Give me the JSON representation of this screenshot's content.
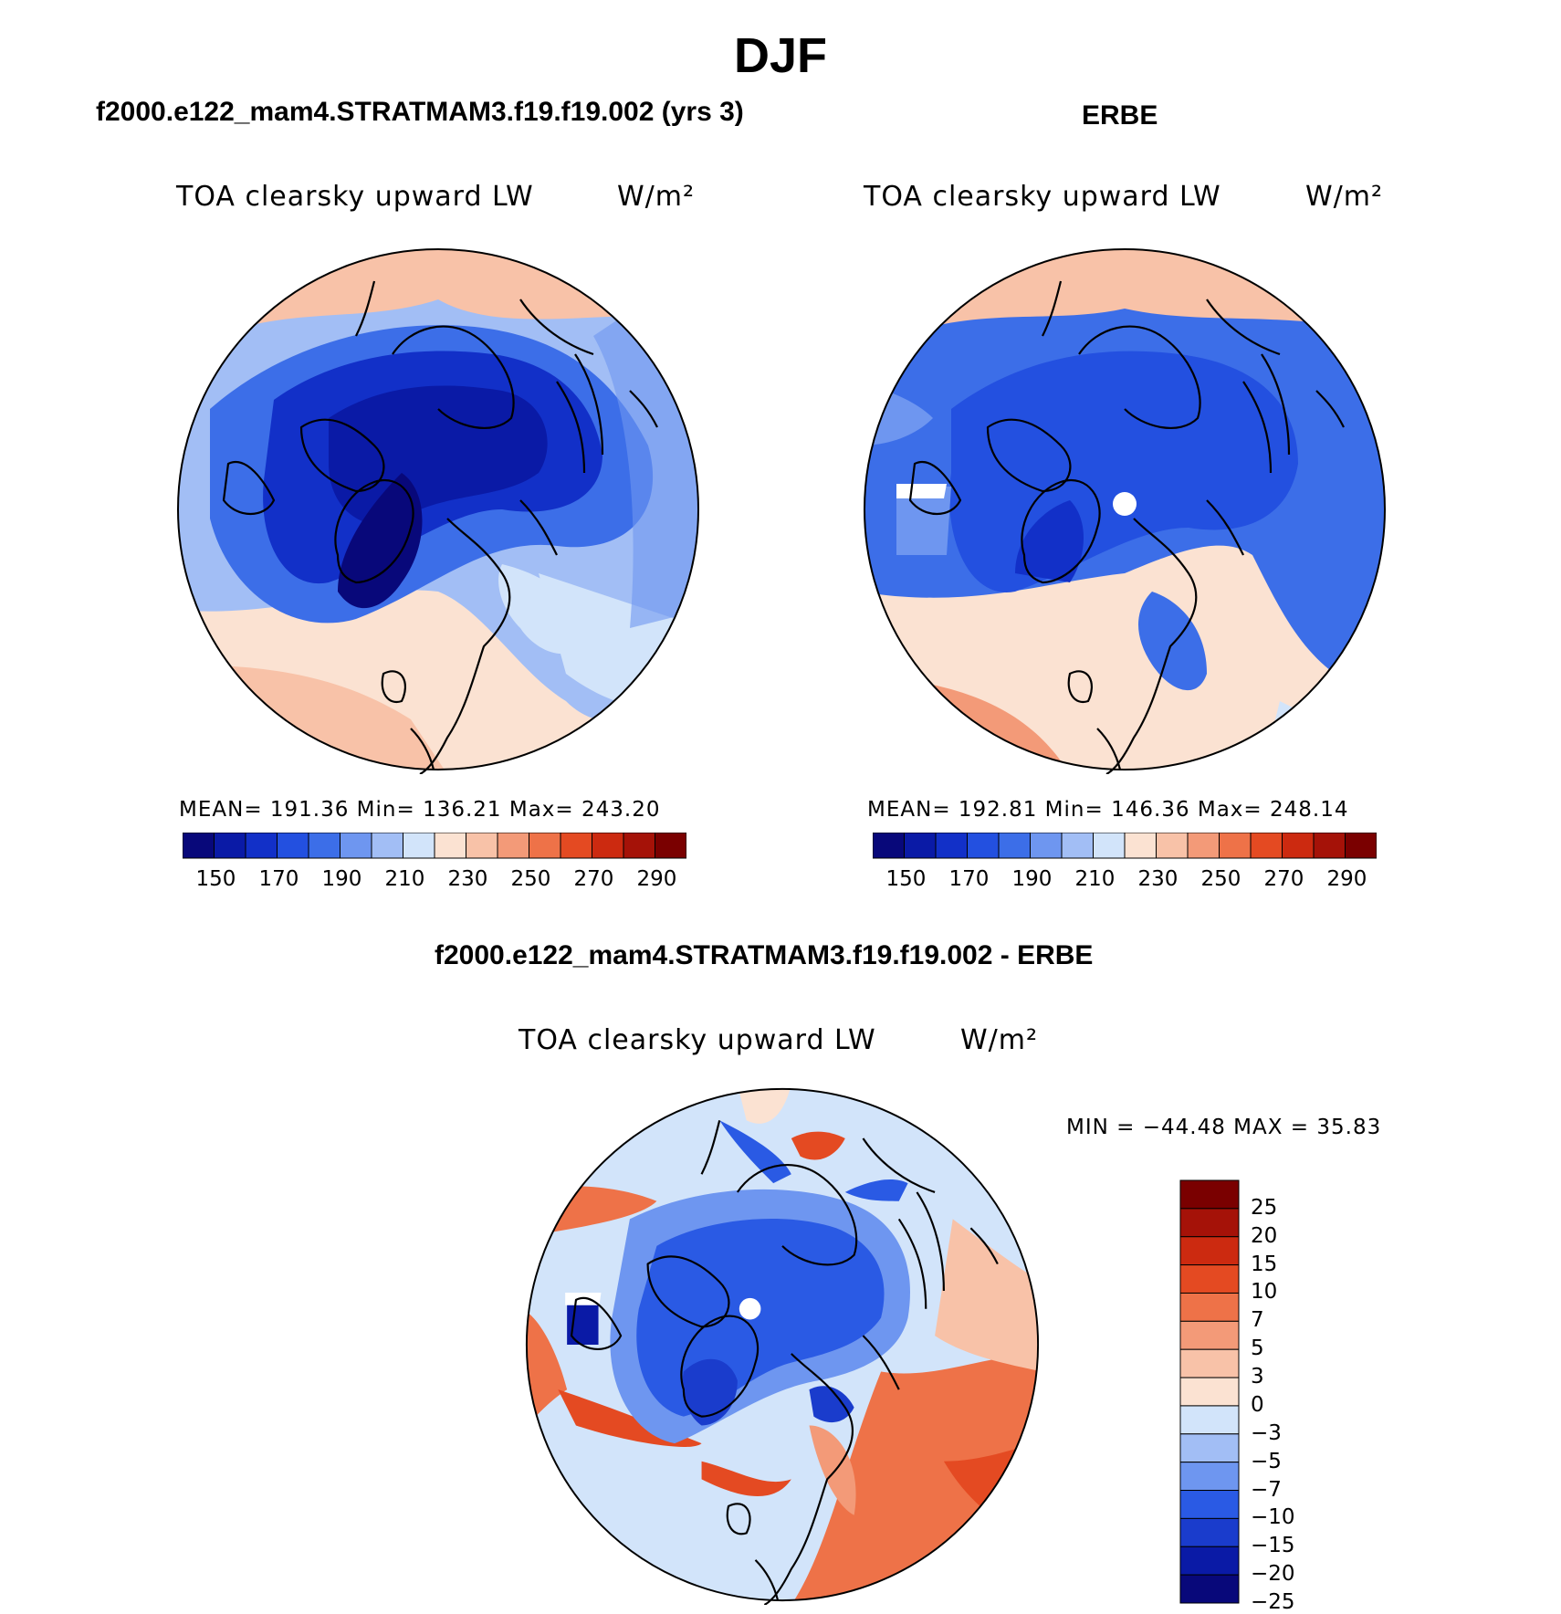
{
  "main_title": "DJF",
  "colors": {
    "model_palette": [
      "#08087a",
      "#0a1aa6",
      "#1230c8",
      "#2350e0",
      "#3c6ee8",
      "#6e96f0",
      "#a2bef5",
      "#d2e4fa",
      "#fbe2d2",
      "#f8c2a8",
      "#f39a78",
      "#ee7248",
      "#e44a22",
      "#cc2a10",
      "#a51208",
      "#7a0000"
    ],
    "diff_palette": [
      "#08087a",
      "#0a1aa6",
      "#1a3ccc",
      "#2a5ae4",
      "#6e96f0",
      "#a2bef5",
      "#d2e4fa",
      "#fbe2d2",
      "#f8c2a8",
      "#f39a78",
      "#ee7248",
      "#e44a22",
      "#cc2a10",
      "#a51208",
      "#7a0000"
    ]
  },
  "panels": [
    {
      "title": "f2000.e122_mam4.STRATMAM3.f19.f19.002 (yrs 3)",
      "variable": "TOA clearsky upward LW",
      "units": "W/m²",
      "stats": "MEAN= 191.36   Min= 136.21   Max= 243.20",
      "colorbar_labels": [
        "150",
        "170",
        "190",
        "210",
        "230",
        "250",
        "270",
        "290"
      ]
    },
    {
      "title": "ERBE",
      "variable": "TOA clearsky upward LW",
      "units": "W/m²",
      "stats": "MEAN= 192.81   Min= 146.36   Max= 248.14",
      "colorbar_labels": [
        "150",
        "170",
        "190",
        "210",
        "230",
        "250",
        "270",
        "290"
      ]
    },
    {
      "title": "f2000.e122_mam4.STRATMAM3.f19.f19.002 - ERBE",
      "variable": "TOA clearsky upward LW",
      "units": "W/m²",
      "stats": "MIN = −44.48 MAX =   35.83",
      "colorbar_labels": [
        "25",
        "20",
        "15",
        "10",
        "7",
        "5",
        "3",
        "0",
        "−3",
        "−5",
        "−7",
        "−10",
        "−15",
        "−20",
        "−25"
      ]
    }
  ]
}
